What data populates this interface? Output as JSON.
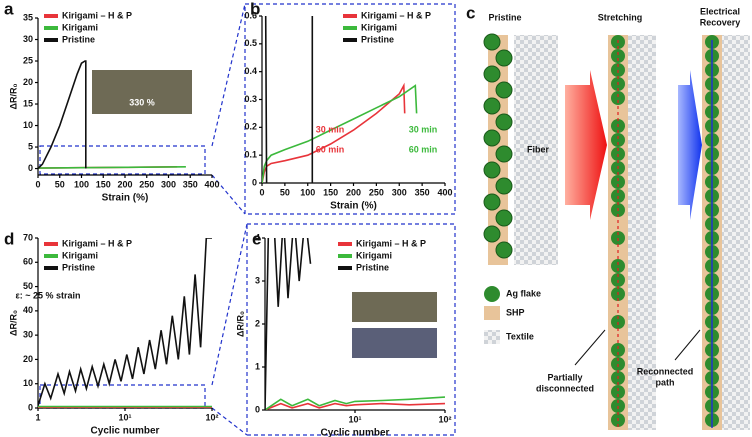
{
  "chart_data": [
    {
      "type": "line",
      "label": "a",
      "xlabel": "Strain (%)",
      "ylabel": "ΔR/R₀",
      "xlim": [
        0,
        400
      ],
      "xticks": [
        0,
        50,
        100,
        150,
        200,
        250,
        300,
        350,
        400
      ],
      "ylim": [
        -1.5,
        35
      ],
      "yticks": [
        0,
        5,
        10,
        15,
        20,
        25,
        30,
        35
      ],
      "series": [
        {
          "name": "Kirigami – H & P",
          "color": "#e8343a",
          "x": [
            0,
            100,
            200,
            320
          ],
          "values": [
            0.1,
            0.2,
            0.3,
            0.4
          ]
        },
        {
          "name": "Kirigami",
          "color": "#3cb93c",
          "x": [
            0,
            100,
            200,
            340
          ],
          "values": [
            0.1,
            0.2,
            0.3,
            0.4
          ]
        },
        {
          "name": "Pristine",
          "color": "#111111",
          "x": [
            0,
            10,
            30,
            50,
            70,
            90,
            100,
            108,
            110,
            110
          ],
          "values": [
            0,
            1,
            5,
            10,
            16,
            22,
            24.5,
            25,
            25,
            0
          ]
        }
      ],
      "annotations": [
        {
          "text": "330 %",
          "color": "#ffffff"
        }
      ]
    },
    {
      "type": "line",
      "label": "b",
      "xlabel": "Strain (%)",
      "xlim": [
        0,
        400
      ],
      "xticks": [
        0,
        50,
        100,
        150,
        200,
        250,
        300,
        350,
        400
      ],
      "ylim": [
        0,
        0.6
      ],
      "yticks": [
        0,
        0.1,
        0.2,
        0.3,
        0.4,
        0.5,
        0.6
      ],
      "series": [
        {
          "name": "Kirigami – H & P",
          "color": "#e8343a",
          "x": [
            0,
            5,
            10,
            20,
            50,
            100,
            150,
            200,
            250,
            300,
            310,
            312
          ],
          "values": [
            0,
            0.04,
            0.06,
            0.07,
            0.08,
            0.1,
            0.14,
            0.19,
            0.25,
            0.32,
            0.35,
            0.25
          ]
        },
        {
          "name": "Kirigami",
          "color": "#3cb93c",
          "x": [
            0,
            5,
            10,
            20,
            50,
            100,
            150,
            200,
            250,
            300,
            335,
            338
          ],
          "values": [
            0,
            0.06,
            0.08,
            0.1,
            0.12,
            0.15,
            0.19,
            0.23,
            0.27,
            0.31,
            0.35,
            0.25
          ]
        },
        {
          "name": "Pristine",
          "color": "#111111",
          "x": [
            8,
            10,
            null,
            110,
            110
          ],
          "values": [
            0.6,
            0,
            null,
            0,
            0.6
          ]
        }
      ],
      "annotations": [
        {
          "text": "30 min",
          "color": "#e8343a"
        },
        {
          "text": "60 min",
          "color": "#e8343a"
        },
        {
          "text": "30 min",
          "color": "#3cb93c"
        },
        {
          "text": "60 min",
          "color": "#3cb93c"
        }
      ]
    },
    {
      "type": "line",
      "label": "d",
      "xlabel": "Cyclic number",
      "ylabel": "ΔR/R₀",
      "xlog": true,
      "xlim": [
        1,
        100
      ],
      "xticks": [
        1,
        {
          "value": 10,
          "label": "10¹"
        },
        {
          "value": 100,
          "label": "10²"
        }
      ],
      "ylim": [
        0,
        70
      ],
      "yticks": [
        0,
        10,
        20,
        30,
        40,
        50,
        60,
        70
      ],
      "series": [
        {
          "name": "Kirigami – H & P",
          "color": "#e8343a",
          "x": [
            1,
            100
          ],
          "values": [
            0.3,
            0.3
          ]
        },
        {
          "name": "Kirigami",
          "color": "#3cb93c",
          "x": [
            1,
            100
          ],
          "values": [
            0.6,
            0.6
          ]
        },
        {
          "name": "Pristine",
          "color": "#111111",
          "x": [
            1,
            1.2,
            1.4,
            1.7,
            2,
            2.3,
            2.7,
            3.1,
            3.6,
            4.2,
            4.9,
            5.7,
            6.6,
            7.7,
            9,
            10.5,
            12.2,
            14.2,
            16.5,
            19.2,
            22.3,
            26,
            30,
            35,
            41,
            48,
            55,
            64,
            74,
            86,
            100
          ],
          "values": [
            1,
            10,
            4,
            14,
            6,
            15,
            7,
            16,
            8,
            17,
            9,
            18,
            10,
            20,
            11,
            22,
            12,
            25,
            14,
            28,
            16,
            32,
            18,
            38,
            20,
            46,
            22,
            55,
            25,
            70,
            70
          ]
        }
      ],
      "annotations": [
        {
          "text": "ε: ~ 25 % strain",
          "color": "#111111"
        }
      ]
    },
    {
      "type": "line",
      "label": "e",
      "xlabel": "Cyclic number",
      "ylabel": "ΔR/R₀",
      "xlog": true,
      "xlim": [
        1,
        100
      ],
      "xticks": [
        {
          "value": 10,
          "label": "10¹"
        },
        {
          "value": 100,
          "label": "10²"
        }
      ],
      "ylim": [
        0,
        4
      ],
      "yticks": [
        0,
        1,
        2,
        3,
        4
      ],
      "series": [
        {
          "name": "Kirigami – H & P",
          "color": "#e8343a",
          "x": [
            1,
            1.5,
            2,
            3,
            4,
            6,
            8,
            10,
            20,
            40,
            100
          ],
          "values": [
            0,
            0.15,
            0.05,
            0.15,
            0.05,
            0.15,
            0.1,
            0.12,
            0.15,
            0.12,
            0.15
          ]
        },
        {
          "name": "Kirigami",
          "color": "#3cb93c",
          "x": [
            1,
            1.5,
            2,
            3,
            4,
            6,
            8,
            10,
            20,
            40,
            100
          ],
          "values": [
            0,
            0.25,
            0.1,
            0.25,
            0.1,
            0.22,
            0.15,
            0.2,
            0.22,
            0.25,
            0.3
          ]
        },
        {
          "name": "Pristine",
          "color": "#111111",
          "x": [
            1,
            1.1,
            1.25,
            1.4,
            1.6,
            1.8,
            2.1,
            2.4,
            2.8,
            3.2
          ],
          "values": [
            0,
            4.5,
            4.5,
            2.4,
            4.5,
            2.6,
            4.5,
            3,
            4.5,
            3.4
          ]
        }
      ],
      "annotations": []
    }
  ],
  "diagram": {
    "label": "c",
    "pristine": "Pristine",
    "stretching": "Stretching",
    "recovery": [
      "Electrical",
      "Recovery"
    ],
    "fiber": "Fiber",
    "legend": [
      "Ag flake",
      "SHP",
      "Textile"
    ],
    "partial": [
      "Partially",
      "disconnected"
    ],
    "reconnected": [
      "Reconnected",
      "path"
    ]
  }
}
